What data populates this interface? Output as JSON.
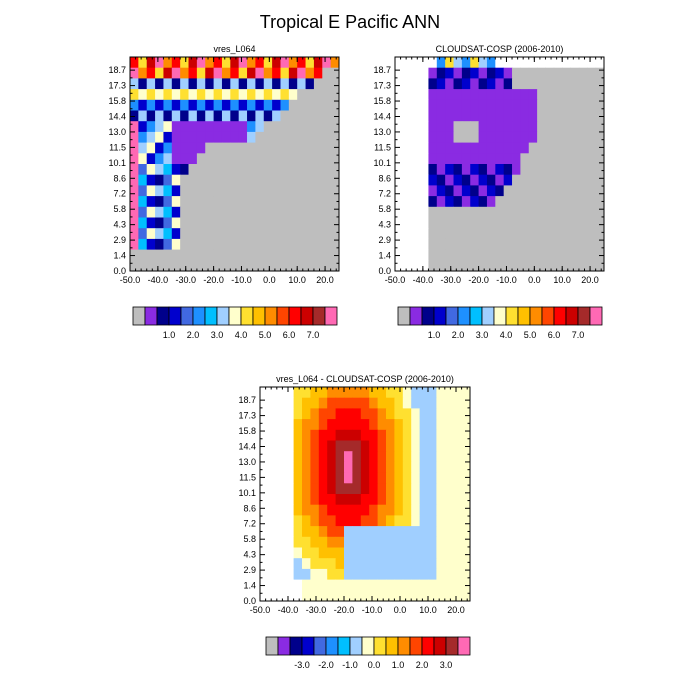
{
  "page": {
    "title": "Tropical E Pacific ANN"
  },
  "chart_data": [
    {
      "type": "heatmap",
      "title": "vres_L064",
      "x_ticks": [
        "-50.0",
        "-40.0",
        "-30.0",
        "-20.0",
        "-10.0",
        "0.0",
        "10.0",
        "20.0"
      ],
      "y_ticks": [
        "0.0",
        "1.4",
        "2.9",
        "4.3",
        "5.8",
        "7.2",
        "8.6",
        "10.1",
        "11.5",
        "13.0",
        "14.4",
        "15.8",
        "17.3",
        "18.7"
      ],
      "xlim": [
        -50,
        25
      ],
      "ylim": [
        0,
        20
      ],
      "missing_color": "#bebebe",
      "colorbar": {
        "colors": [
          "#bebebe",
          "#8a2be2",
          "#00008b",
          "#0000cd",
          "#4169e1",
          "#1e90ff",
          "#00bfff",
          "#a0cfff",
          "#ffffcc",
          "#ffe030",
          "#ffc000",
          "#ff8c00",
          "#ff4500",
          "#ff0000",
          "#cc0000",
          "#a52a2a",
          "#ff69b4"
        ],
        "labels": [
          "1.0",
          "2.0",
          "3.0",
          "4.0",
          "5.0",
          "6.0",
          "7.0"
        ]
      }
    },
    {
      "type": "heatmap",
      "title": "CLOUDSAT-COSP (2006-2010)",
      "x_ticks": [
        "-50.0",
        "-40.0",
        "-30.0",
        "-20.0",
        "-10.0",
        "0.0",
        "10.0",
        "20.0"
      ],
      "y_ticks": [
        "0.0",
        "1.4",
        "2.9",
        "4.3",
        "5.8",
        "7.2",
        "8.6",
        "10.1",
        "11.5",
        "13.0",
        "14.4",
        "15.8",
        "17.3",
        "18.7"
      ],
      "xlim": [
        -50,
        25
      ],
      "ylim": [
        0,
        20
      ],
      "missing_color": "#bebebe",
      "colorbar": {
        "colors": [
          "#bebebe",
          "#8a2be2",
          "#00008b",
          "#0000cd",
          "#4169e1",
          "#1e90ff",
          "#00bfff",
          "#a0cfff",
          "#ffffcc",
          "#ffe030",
          "#ffc000",
          "#ff8c00",
          "#ff4500",
          "#ff0000",
          "#cc0000",
          "#a52a2a",
          "#ff69b4"
        ],
        "labels": [
          "1.0",
          "2.0",
          "3.0",
          "4.0",
          "5.0",
          "6.0",
          "7.0"
        ]
      }
    },
    {
      "type": "heatmap",
      "title": "vres_L064 - CLOUDSAT-COSP (2006-2010)",
      "x_ticks": [
        "-50.0",
        "-40.0",
        "-30.0",
        "-20.0",
        "-10.0",
        "0.0",
        "10.0",
        "20.0"
      ],
      "y_ticks": [
        "0.0",
        "1.4",
        "2.9",
        "4.3",
        "5.8",
        "7.2",
        "8.6",
        "10.1",
        "11.5",
        "13.0",
        "14.4",
        "15.8",
        "17.3",
        "18.7"
      ],
      "xlim": [
        -50,
        25
      ],
      "ylim": [
        0,
        20
      ],
      "colorbar": {
        "colors": [
          "#bebebe",
          "#8a2be2",
          "#00008b",
          "#0000cd",
          "#4169e1",
          "#1e90ff",
          "#00bfff",
          "#a0cfff",
          "#ffffcc",
          "#ffe030",
          "#ffc000",
          "#ff8c00",
          "#ff4500",
          "#ff0000",
          "#cc0000",
          "#a52a2a",
          "#ff69b4"
        ],
        "labels": [
          "-3.0",
          "-2.0",
          "-1.0",
          "0.0",
          "1.0",
          "2.0",
          "3.0"
        ]
      }
    }
  ]
}
